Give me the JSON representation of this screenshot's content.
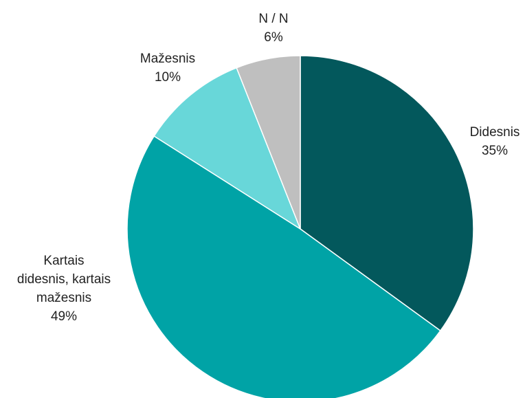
{
  "chart_data": {
    "type": "pie",
    "start_angle_deg": 0,
    "direction": "clockwise",
    "slices": [
      {
        "label_lines": [
          "Didesnis"
        ],
        "percent_label": "35%",
        "value": 35,
        "color": "#03585C"
      },
      {
        "label_lines": [
          "Kartais",
          "didesnis, kartais",
          "mažesnis"
        ],
        "percent_label": "49%",
        "value": 49,
        "color": "#00A3A6"
      },
      {
        "label_lines": [
          "Mažesnis"
        ],
        "percent_label": "10%",
        "value": 10,
        "color": "#68D7D9"
      },
      {
        "label_lines": [
          "N / N"
        ],
        "percent_label": "6%",
        "value": 6,
        "color": "#BFBFBF"
      }
    ],
    "legend": "none"
  }
}
